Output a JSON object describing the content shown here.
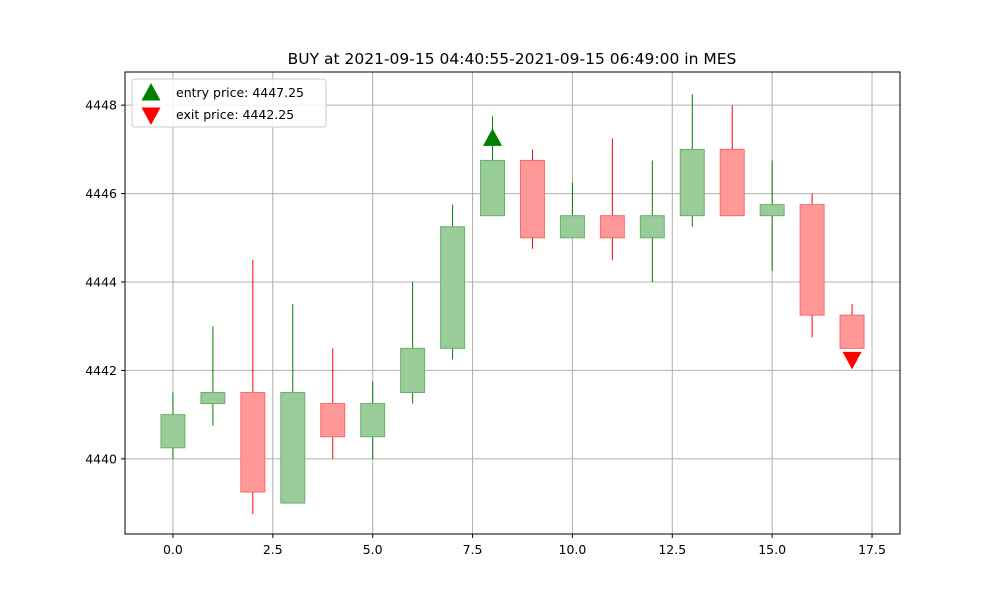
{
  "chart_data": {
    "type": "candlestick",
    "title": "BUY at 2021-09-15 04:40:55-2021-09-15 06:49:00 in MES",
    "xlabel": "",
    "ylabel": "",
    "xlim": [
      -1.2,
      18.2
    ],
    "ylim": [
      4438.3,
      4448.75
    ],
    "x_ticks": [
      0.0,
      2.5,
      5.0,
      7.5,
      10.0,
      12.5,
      15.0,
      17.5
    ],
    "x_tick_labels": [
      "0.0",
      "2.5",
      "5.0",
      "7.5",
      "10.0",
      "12.5",
      "15.0",
      "17.5"
    ],
    "y_ticks": [
      4440,
      4442,
      4444,
      4446,
      4448
    ],
    "y_tick_labels": [
      "4440",
      "4442",
      "4444",
      "4446",
      "4448"
    ],
    "grid": true,
    "legend_position": "top-left",
    "colors": {
      "up_fill": "#99cc99",
      "up_edge": "#66b266",
      "up_wick": "#008000",
      "down_fill": "#ff9999",
      "down_edge": "#ff6666",
      "down_wick": "#ff0000",
      "entry_marker": "#008000",
      "exit_marker": "#ff0000",
      "grid": "#b0b0b0"
    },
    "candles": [
      {
        "x": 0,
        "open": 4440.25,
        "high": 4441.5,
        "low": 4440.0,
        "close": 4441.0
      },
      {
        "x": 1,
        "open": 4441.25,
        "high": 4443.0,
        "low": 4440.75,
        "close": 4441.5
      },
      {
        "x": 2,
        "open": 4441.5,
        "high": 4444.5,
        "low": 4438.75,
        "close": 4439.25
      },
      {
        "x": 3,
        "open": 4439.0,
        "high": 4443.5,
        "low": 4439.0,
        "close": 4441.5
      },
      {
        "x": 4,
        "open": 4441.25,
        "high": 4442.5,
        "low": 4440.0,
        "close": 4440.5
      },
      {
        "x": 5,
        "open": 4440.5,
        "high": 4441.75,
        "low": 4440.0,
        "close": 4441.25
      },
      {
        "x": 6,
        "open": 4441.5,
        "high": 4444.0,
        "low": 4441.25,
        "close": 4442.5
      },
      {
        "x": 7,
        "open": 4442.5,
        "high": 4445.75,
        "low": 4442.25,
        "close": 4445.25
      },
      {
        "x": 8,
        "open": 4445.5,
        "high": 4447.75,
        "low": 4445.5,
        "close": 4446.75
      },
      {
        "x": 9,
        "open": 4446.75,
        "high": 4447.0,
        "low": 4444.75,
        "close": 4445.0
      },
      {
        "x": 10,
        "open": 4445.0,
        "high": 4446.25,
        "low": 4445.0,
        "close": 4445.5
      },
      {
        "x": 11,
        "open": 4445.5,
        "high": 4447.25,
        "low": 4444.5,
        "close": 4445.0
      },
      {
        "x": 12,
        "open": 4445.0,
        "high": 4446.75,
        "low": 4444.0,
        "close": 4445.5
      },
      {
        "x": 13,
        "open": 4445.5,
        "high": 4448.25,
        "low": 4445.25,
        "close": 4447.0
      },
      {
        "x": 14,
        "open": 4447.0,
        "high": 4448.0,
        "low": 4445.5,
        "close": 4445.5
      },
      {
        "x": 15,
        "open": 4445.5,
        "high": 4446.75,
        "low": 4444.25,
        "close": 4445.75
      },
      {
        "x": 16,
        "open": 4445.75,
        "high": 4446.0,
        "low": 4442.75,
        "close": 4443.25
      },
      {
        "x": 17,
        "open": 4443.25,
        "high": 4443.5,
        "low": 4442.5,
        "close": 4442.5
      }
    ],
    "markers": [
      {
        "name": "entry",
        "x": 8,
        "y": 4447.25,
        "shape": "triangle-up",
        "color": "#008000"
      },
      {
        "name": "exit",
        "x": 17,
        "y": 4442.25,
        "shape": "triangle-down",
        "color": "#ff0000"
      }
    ],
    "legend": [
      {
        "label": "entry price: 4447.25",
        "shape": "triangle-up",
        "color": "#008000"
      },
      {
        "label": "exit price: 4442.25",
        "shape": "triangle-down",
        "color": "#ff0000"
      }
    ]
  }
}
